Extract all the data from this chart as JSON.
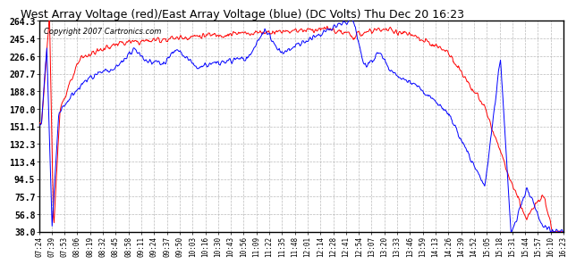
{
  "title": "West Array Voltage (red)/East Array Voltage (blue) (DC Volts) Thu Dec 20 16:23",
  "copyright": "Copyright 2007 Cartronics.com",
  "y_tick_labels": [
    38.0,
    56.8,
    75.7,
    94.5,
    113.4,
    132.3,
    151.1,
    170.0,
    188.8,
    207.7,
    226.6,
    245.4,
    264.3
  ],
  "x_tick_labels": [
    "07:24",
    "07:39",
    "07:53",
    "08:06",
    "08:19",
    "08:32",
    "08:45",
    "08:58",
    "09:11",
    "09:24",
    "09:37",
    "09:50",
    "10:03",
    "10:16",
    "10:30",
    "10:43",
    "10:56",
    "11:09",
    "11:22",
    "11:35",
    "11:48",
    "12:01",
    "12:14",
    "12:28",
    "12:41",
    "12:54",
    "13:07",
    "13:20",
    "13:33",
    "13:46",
    "13:59",
    "14:13",
    "14:26",
    "14:39",
    "14:52",
    "15:05",
    "15:18",
    "15:31",
    "15:44",
    "15:57",
    "16:10",
    "16:23"
  ],
  "y_min": 38.0,
  "y_max": 264.3,
  "red_color": "#ff0000",
  "blue_color": "#0000ff",
  "bg_color": "#ffffff",
  "grid_color": "#aaaaaa"
}
